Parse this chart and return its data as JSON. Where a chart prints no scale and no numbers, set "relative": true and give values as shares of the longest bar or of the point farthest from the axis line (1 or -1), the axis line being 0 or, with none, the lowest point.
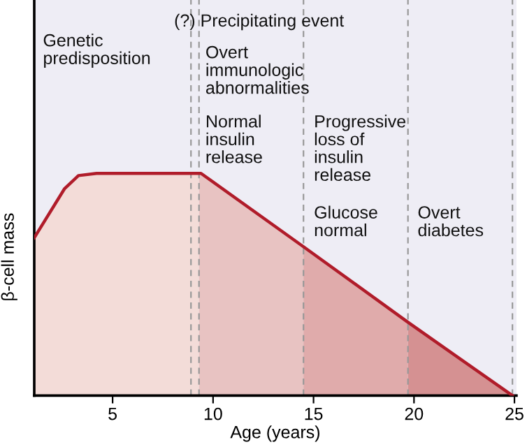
{
  "chart_data": {
    "type": "area",
    "relative": true,
    "xlabel": "Age (years)",
    "ylabel": "β-cell mass",
    "xlim": [
      1.1,
      25.1
    ],
    "xticks": [
      5,
      10,
      15,
      20,
      25
    ],
    "grid": false,
    "series": [
      {
        "color": "#f3dcd8",
        "x": [
          1.1,
          2.6,
          3.3,
          4.2,
          9.3
        ],
        "values": [
          0.71,
          0.93,
          0.99,
          1,
          1
        ]
      },
      {
        "color": "#e8c3c2",
        "x": [
          9.3,
          9.4,
          14.5
        ],
        "values": [
          1,
          1,
          0.67
        ]
      },
      {
        "color": "#e0abab",
        "x": [
          14.5,
          19.7
        ],
        "values": [
          0.67,
          0.33
        ]
      },
      {
        "color": "#d59192",
        "x": [
          19.7,
          24.9
        ],
        "values": [
          0.33,
          0
        ]
      },
      {
        "type": "line",
        "color": "#b01c2a",
        "x": [
          1.1,
          2.6,
          3.3,
          4.2,
          9.4,
          14.5,
          19.7,
          24.9
        ],
        "values": [
          0.71,
          0.93,
          0.99,
          1,
          1,
          0.67,
          0.33,
          0
        ]
      }
    ],
    "ref_lines": [
      {
        "axis": "x",
        "value": 8.9,
        "color": "#999999",
        "line_style": "dashed"
      },
      {
        "axis": "x",
        "value": 9.3,
        "color": "#999999",
        "line_style": "dashed"
      },
      {
        "axis": "x",
        "value": 14.5,
        "color": "#999999",
        "line_style": "dashed"
      },
      {
        "axis": "x",
        "value": 19.7,
        "color": "#999999",
        "line_style": "dashed"
      },
      {
        "axis": "x",
        "value": 24.9,
        "color": "#999999",
        "line_style": "dashed"
      }
    ],
    "annotations": [
      "(?) Precipitating event",
      "Genetic\npredisposition",
      "Overt\nimmunologic\nabnormalities",
      "Normal\ninsulin\nrelease",
      "Progressive\nloss of\ninsulin\nrelease",
      "Glucose\nnormal",
      "Overt\ndiabetes"
    ]
  }
}
